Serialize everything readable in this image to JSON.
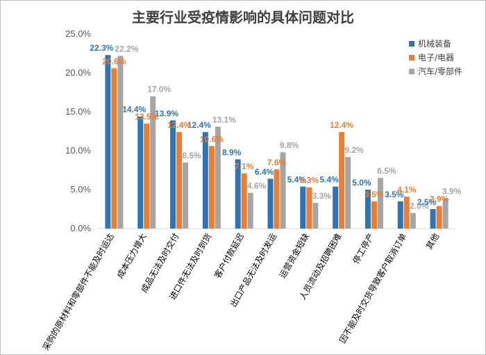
{
  "chart_data": {
    "type": "bar",
    "title": "主要行业受疫情影响的具体问题对比",
    "xlabel": "",
    "ylabel": "",
    "ylim": [
      0,
      25
    ],
    "yticks": [
      "0.0%",
      "5.0%",
      "10.0%",
      "15.0%",
      "20.0%",
      "25.0%"
    ],
    "grid": false,
    "legend_position": "top-right",
    "categories": [
      "采购的原材料和零部件不能及时运达",
      "成本压力增大",
      "成品无法及时交付",
      "进口件无法及时到货",
      "客户付款延迟",
      "出口产品无法及时发运",
      "运营资金短缺",
      "人员流动及招聘困难",
      "停工停产",
      "因不能及时交货导致客户取消订单",
      "其他"
    ],
    "series": [
      {
        "name": "机械装备",
        "color": "#2E75B6",
        "values": [
          22.3,
          14.4,
          13.9,
          12.4,
          8.9,
          6.4,
          5.4,
          5.4,
          5.0,
          3.5,
          2.5
        ],
        "labels": [
          "22.3%",
          "14.4%",
          "13.9%",
          "12.4%",
          "8.9%",
          "6.4%",
          "5.4%",
          "5.4%",
          "5.0%",
          "3.5%",
          "2.5%"
        ]
      },
      {
        "name": "电子/电器",
        "color": "#ED7D31",
        "values": [
          20.6,
          13.5,
          12.4,
          10.6,
          7.1,
          7.6,
          5.3,
          12.4,
          3.5,
          4.1,
          2.9
        ],
        "labels": [
          "20.6%",
          "13.5%",
          "12.4%",
          "10.6%",
          "7.1%",
          "7.6%",
          "5.3%",
          "12.4%",
          "3.5%",
          "4.1%",
          "2.9%"
        ]
      },
      {
        "name": "汽车/零部件",
        "color": "#A5A5A5",
        "values": [
          22.2,
          17.0,
          8.5,
          13.1,
          4.6,
          9.8,
          3.3,
          9.2,
          6.5,
          2.0,
          3.9
        ],
        "labels": [
          "22.2%",
          "17.0%",
          "8.5%",
          "13.1%",
          "4.6%",
          "9.8%",
          "3.3%",
          "9.2%",
          "6.5%",
          "2.0%",
          "3.9%"
        ]
      }
    ]
  }
}
